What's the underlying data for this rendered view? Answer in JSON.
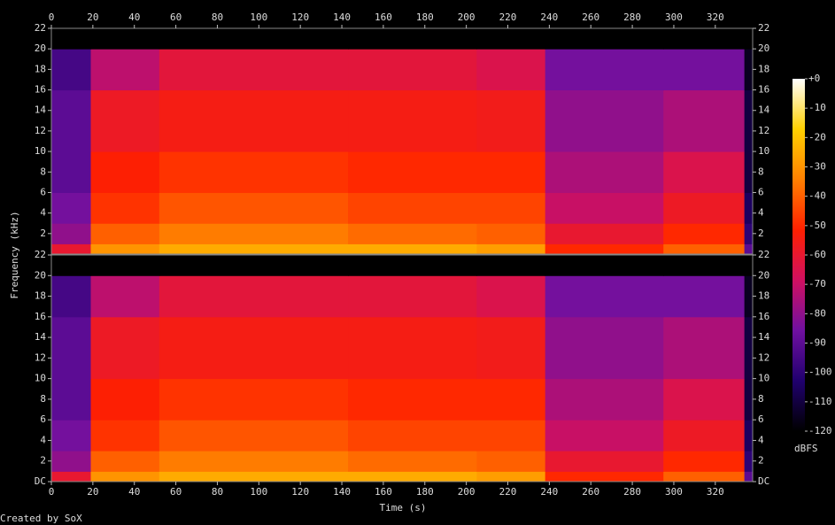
{
  "chart_data": [
    {
      "type": "heatmap",
      "x_edges": [
        0,
        19,
        52,
        143,
        205,
        238,
        295,
        334,
        338
      ],
      "y_edges": [
        0,
        1,
        3,
        6,
        10,
        16,
        20,
        22
      ],
      "values": [
        [
          -60,
          -30,
          -25,
          -25,
          -28,
          -50,
          -40,
          -90
        ],
        [
          -80,
          -40,
          -35,
          -38,
          -40,
          -60,
          -50,
          -100
        ],
        [
          -85,
          -48,
          -42,
          -45,
          -45,
          -70,
          -58,
          -105
        ],
        [
          -90,
          -52,
          -48,
          -50,
          -50,
          -75,
          -65,
          -110
        ],
        [
          -90,
          -58,
          -55,
          -55,
          -56,
          -80,
          -75,
          -110
        ],
        [
          -95,
          -72,
          -62,
          -62,
          -65,
          -85,
          -85,
          -115
        ],
        [
          -120,
          -120,
          -120,
          -120,
          -120,
          -120,
          -120,
          -120
        ]
      ],
      "xlim": [
        0,
        338
      ],
      "ylim": [
        0,
        22
      ],
      "xticks": [
        0,
        20,
        40,
        60,
        80,
        100,
        120,
        140,
        160,
        180,
        200,
        220,
        240,
        260,
        280,
        300,
        320
      ],
      "yticks": [
        2,
        4,
        6,
        8,
        10,
        12,
        14,
        16,
        18,
        20,
        22
      ]
    },
    {
      "type": "heatmap",
      "x_edges": [
        0,
        19,
        52,
        143,
        205,
        238,
        295,
        334,
        338
      ],
      "y_edges": [
        0,
        1,
        3,
        6,
        10,
        16,
        20,
        22
      ],
      "values": [
        [
          -60,
          -30,
          -25,
          -25,
          -28,
          -50,
          -40,
          -90
        ],
        [
          -80,
          -40,
          -35,
          -38,
          -40,
          -60,
          -50,
          -100
        ],
        [
          -85,
          -48,
          -42,
          -45,
          -45,
          -70,
          -58,
          -105
        ],
        [
          -90,
          -52,
          -48,
          -50,
          -50,
          -75,
          -65,
          -110
        ],
        [
          -90,
          -58,
          -55,
          -55,
          -56,
          -80,
          -75,
          -110
        ],
        [
          -95,
          -72,
          -62,
          -62,
          -65,
          -85,
          -85,
          -115
        ],
        [
          -120,
          -120,
          -120,
          -120,
          -120,
          -120,
          -120,
          -120
        ]
      ],
      "xlim": [
        0,
        338
      ],
      "ylim": [
        0,
        22
      ],
      "xticks": [
        0,
        20,
        40,
        60,
        80,
        100,
        120,
        140,
        160,
        180,
        200,
        220,
        240,
        260,
        280,
        300,
        320
      ],
      "yticks": [
        {
          "value": 0,
          "label": "DC"
        },
        2,
        4,
        6,
        8,
        10,
        12,
        14,
        16,
        18,
        20,
        22
      ],
      "x_label": "Time (s)"
    }
  ],
  "y_label": "Frequency (kHz)",
  "colorbar": {
    "label": "dBFS",
    "lim": [
      -120,
      0
    ],
    "colors": [
      "#000000",
      "#20006e",
      "#7010a0",
      "#d01060",
      "#ff2000",
      "#ff8000",
      "#ffd000",
      "#ffffff"
    ],
    "ticks": [
      {
        "value": 0,
        "label": "+0"
      },
      -10,
      -20,
      -30,
      -40,
      -50,
      -60,
      -70,
      -80,
      -90,
      -100,
      -110,
      -120
    ]
  },
  "footer": "Created by SoX"
}
